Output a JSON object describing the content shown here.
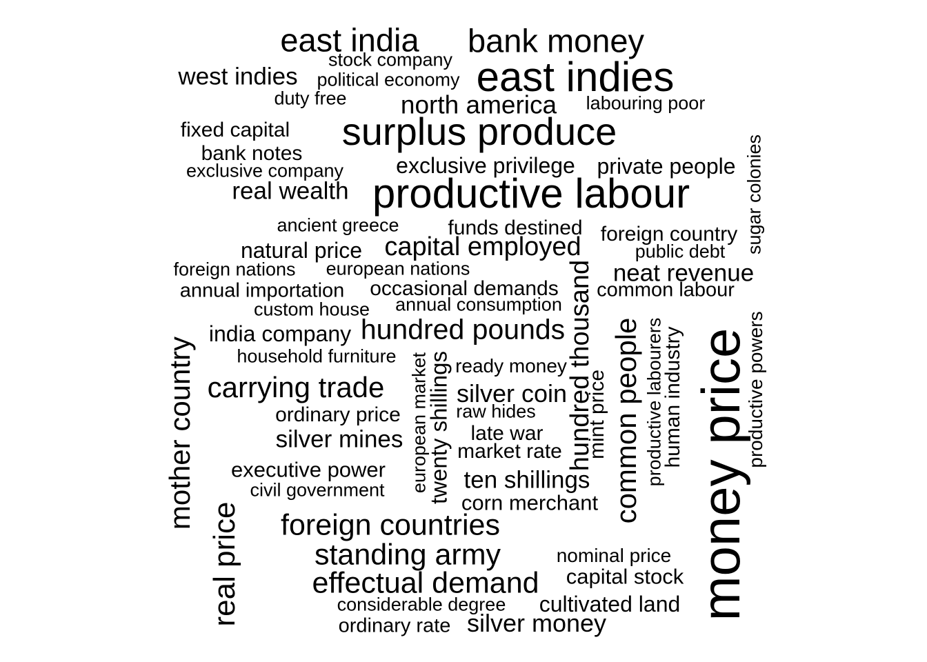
{
  "words": [
    "east india",
    "bank money",
    "stock company",
    "west indies",
    "political economy",
    "east indies",
    "duty free",
    "north america",
    "labouring poor",
    "fixed capital",
    "surplus produce",
    "bank notes",
    "exclusive company",
    "exclusive privilege",
    "private people",
    "sugar colonies",
    "real wealth",
    "productive labour",
    "ancient greece",
    "funds destined",
    "foreign country",
    "natural price",
    "capital employed",
    "public debt",
    "foreign nations",
    "european nations",
    "neat revenue",
    "annual importation",
    "occasional demands",
    "common labour",
    "custom house",
    "annual consumption",
    "hundred thousand",
    "common people",
    "productive labourers",
    "human industry",
    "money price",
    "productive powers",
    "india company",
    "hundred pounds",
    "mother country",
    "household furniture",
    "european market",
    "twenty shillings",
    "ready money",
    "mint price",
    "carrying trade",
    "silver coin",
    "ordinary price",
    "raw hides",
    "silver mines",
    "late war",
    "market rate",
    "executive power",
    "ten shillings",
    "civil government",
    "corn merchant",
    "real price",
    "foreign countries",
    "standing army",
    "nominal price",
    "capital stock",
    "effectual demand",
    "considerable degree",
    "cultivated land",
    "ordinary rate",
    "silver money"
  ]
}
